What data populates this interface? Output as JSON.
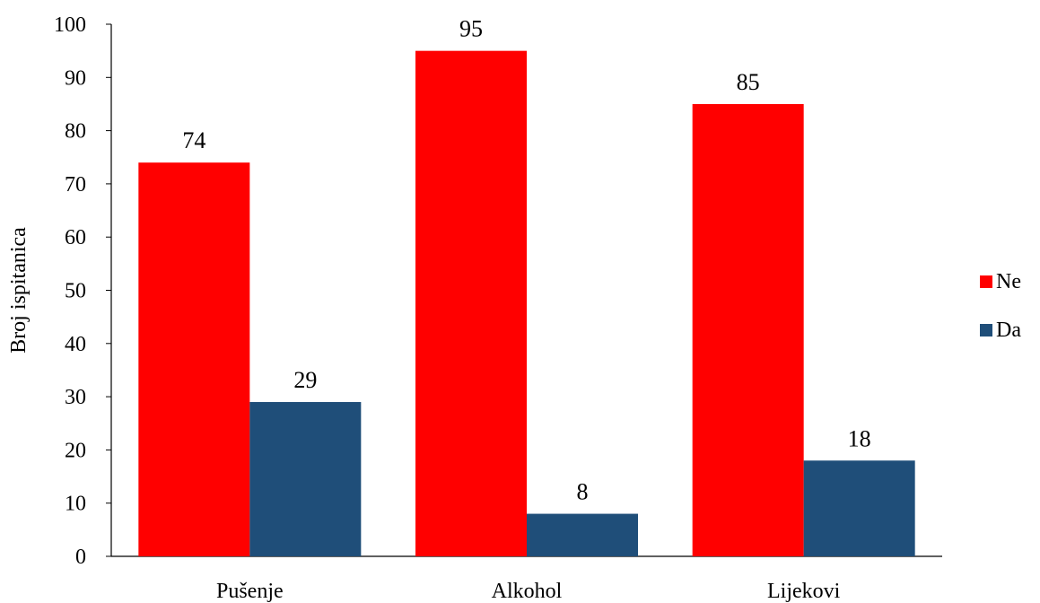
{
  "chart_data": {
    "type": "bar",
    "title": "",
    "xlabel": "",
    "ylabel": "Broj ispitanica",
    "categories": [
      "Pušenje",
      "Alkohol",
      "Lijekovi"
    ],
    "series": [
      {
        "name": "Ne",
        "values": [
          74,
          95,
          85
        ],
        "color": "#ff0000"
      },
      {
        "name": "Da",
        "values": [
          29,
          8,
          18
        ],
        "color": "#1f4e79"
      }
    ],
    "ylim": [
      0,
      100
    ],
    "yticks": [
      0,
      10,
      20,
      30,
      40,
      50,
      60,
      70,
      80,
      90,
      100
    ],
    "grid": false,
    "legend_position": "right"
  }
}
